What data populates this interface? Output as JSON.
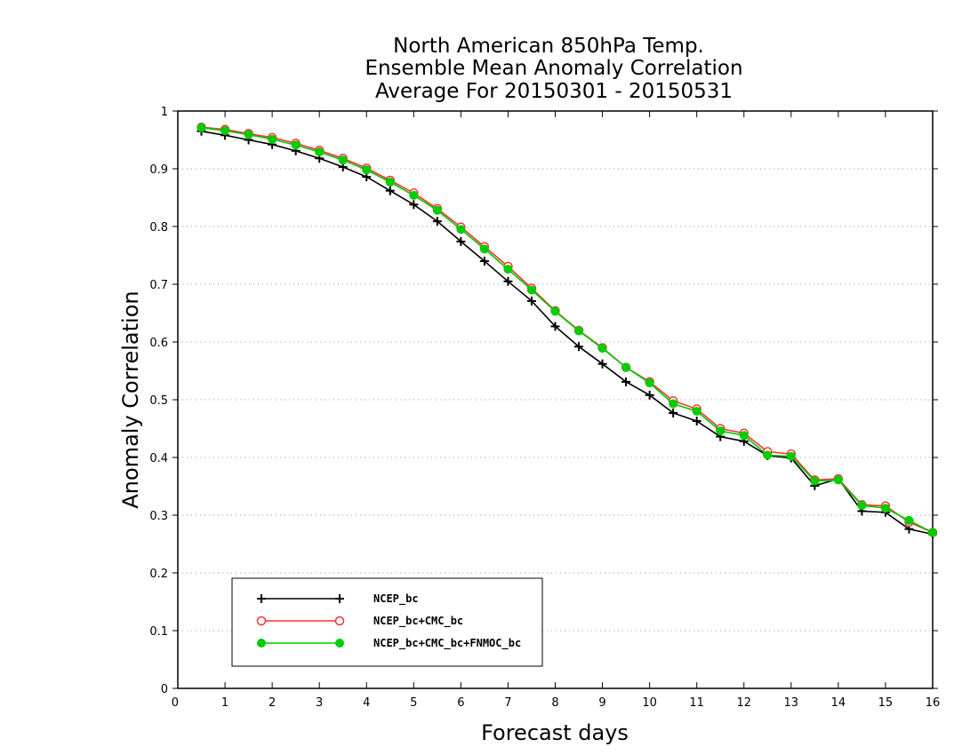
{
  "chart_data": {
    "type": "line",
    "title": [
      "North American 850hPa Temp.",
      "Ensemble Mean Anomaly Correlation",
      "Average For 20150301 - 20150531"
    ],
    "xlabel": "Forecast days",
    "ylabel": "Anomaly Correlation",
    "xlim": [
      0,
      16
    ],
    "ylim": [
      0,
      1
    ],
    "xticks": [
      0,
      1,
      2,
      3,
      4,
      5,
      6,
      7,
      8,
      9,
      10,
      11,
      12,
      13,
      14,
      15,
      16
    ],
    "yticks": [
      0,
      0.1,
      0.2,
      0.3,
      0.4,
      0.5,
      0.6,
      0.7,
      0.8,
      0.9,
      1
    ],
    "ytick_labels": [
      "0",
      "0.1",
      "0.2",
      "0.3",
      "0.4",
      "0.5",
      "0.6",
      "0.7",
      "0.8",
      "0.9",
      "1"
    ],
    "grid": "horizontal dotted",
    "legend_position": "bottom-left",
    "x": [
      0.5,
      1,
      1.5,
      2,
      2.5,
      3,
      3.5,
      4,
      4.5,
      5,
      5.5,
      6,
      6.5,
      7,
      7.5,
      8,
      8.5,
      9,
      9.5,
      10,
      10.5,
      11,
      11.5,
      12,
      12.5,
      13,
      13.5,
      14,
      14.5,
      15,
      15.5,
      16
    ],
    "series": [
      {
        "name": "NCEP_bc",
        "color": "#000000",
        "marker": "plus",
        "values": [
          0.965,
          0.958,
          0.95,
          0.942,
          0.931,
          0.918,
          0.903,
          0.886,
          0.862,
          0.838,
          0.809,
          0.774,
          0.74,
          0.705,
          0.671,
          0.627,
          0.592,
          0.562,
          0.531,
          0.508,
          0.477,
          0.463,
          0.436,
          0.428,
          0.403,
          0.399,
          0.351,
          0.363,
          0.307,
          0.305,
          0.276,
          0.267
        ]
      },
      {
        "name": "NCEP_bc+CMC_bc",
        "color": "#ff3333",
        "marker": "open-circle",
        "values": [
          0.972,
          0.968,
          0.961,
          0.954,
          0.944,
          0.932,
          0.918,
          0.901,
          0.88,
          0.858,
          0.831,
          0.799,
          0.765,
          0.731,
          0.693,
          0.654,
          0.62,
          0.59,
          0.556,
          0.531,
          0.498,
          0.484,
          0.45,
          0.442,
          0.41,
          0.406,
          0.361,
          0.363,
          0.318,
          0.316,
          0.288,
          0.27
        ]
      },
      {
        "name": "NCEP_bc+CMC_bc+FNMOC_bc",
        "color": "#00cc00",
        "marker": "filled-circle",
        "values": [
          0.971,
          0.966,
          0.959,
          0.951,
          0.941,
          0.929,
          0.915,
          0.898,
          0.877,
          0.854,
          0.828,
          0.795,
          0.761,
          0.726,
          0.69,
          0.653,
          0.619,
          0.589,
          0.556,
          0.529,
          0.493,
          0.48,
          0.446,
          0.438,
          0.404,
          0.402,
          0.359,
          0.361,
          0.317,
          0.312,
          0.291,
          0.27
        ]
      }
    ]
  }
}
